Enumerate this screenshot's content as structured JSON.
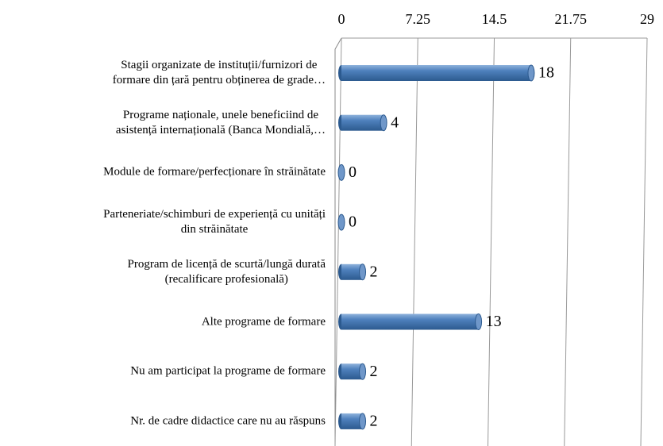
{
  "chart_data": {
    "type": "bar",
    "orientation": "horizontal",
    "categories": [
      "Stagii organizate de instituții/furnizori de\nformare din țară pentru obținerea de grade…",
      "Programe naționale, unele beneficiind de\nasistență internațională (Banca Mondială,…",
      "Module de formare/perfecționare în străinătate",
      "Parteneriate/schimburi de experiență cu unități\ndin străinătate",
      "Program de licență de scurtă/lungă durată\n(recalificare profesională)",
      "Alte programe de formare",
      "Nu am participat la programe de formare",
      "Nr. de cadre didactice care nu au răspuns"
    ],
    "values": [
      18,
      4,
      0,
      0,
      2,
      13,
      2,
      2
    ],
    "color": "#4f81bd",
    "xlim": [
      0,
      29
    ],
    "xticks": [
      0,
      7.25,
      14.5,
      21.75,
      29
    ],
    "grid": true
  }
}
